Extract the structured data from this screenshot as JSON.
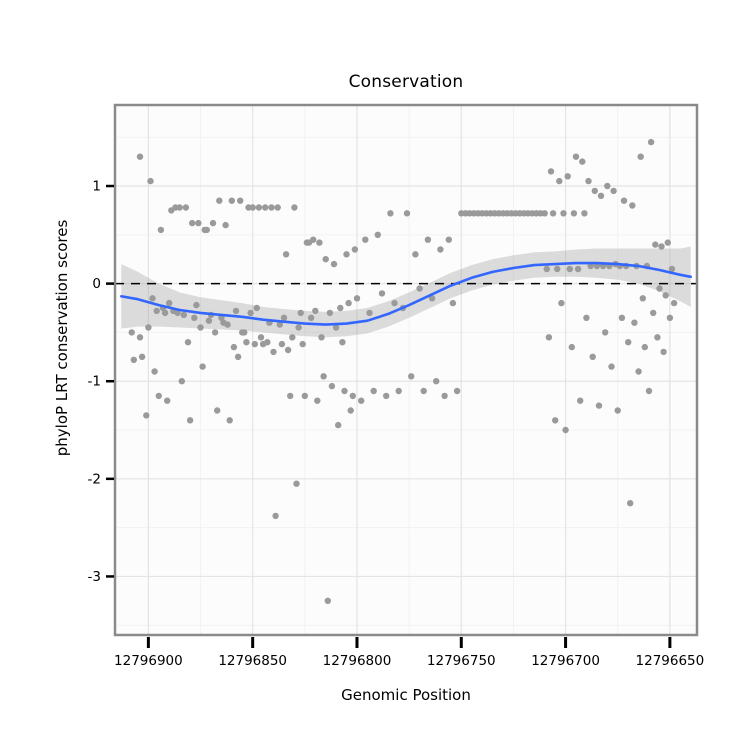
{
  "figure": {
    "title": "Conservation",
    "x_axis_title": "Genomic Position",
    "y_axis_title": "phyloP LRT conservation scores"
  },
  "chart_data": {
    "type": "scatter",
    "title": "Conservation",
    "xlabel": "Genomic Position",
    "ylabel": "phyloP LRT conservation scores",
    "x_axis_reversed": true,
    "xlim": [
      12796916,
      12796637
    ],
    "ylim": [
      -3.6,
      1.83
    ],
    "x_ticks": [
      12796900,
      12796850,
      12796800,
      12796750,
      12796700,
      12796650
    ],
    "x_tick_labels": [
      "12796900",
      "12796850",
      "12796800",
      "12796750",
      "12796700",
      "12796650"
    ],
    "x_minor_ticks": [
      12796875,
      12796825,
      12796775,
      12796725,
      12796675
    ],
    "y_ticks": [
      1,
      0,
      -1,
      -2,
      -3
    ],
    "y_tick_labels": [
      "1",
      "0",
      "-1",
      "-2",
      "-3"
    ],
    "y_minor_ticks": [
      1.5,
      0.5,
      -0.5,
      -1.5,
      -2.5,
      -3.5
    ],
    "grid": "on",
    "legend": "none",
    "reference_line": {
      "y": 0,
      "style": "dashed",
      "color": "#000000"
    },
    "styles": {
      "point_color": "#9A9A9A",
      "point_radius": 3.2,
      "smooth_line_color": "#3366FF",
      "ribbon_color": "#9E9E9E",
      "ribbon_opacity": 0.35,
      "panel_bg": "#FCFCFC",
      "grid_major": "#E4E4E4",
      "grid_minor": "#F2F2F2",
      "panel_border": "#8A8A8A",
      "tick_color": "#000000"
    },
    "smooth": [
      [
        12796913,
        -0.13,
        -0.46,
        0.2
      ],
      [
        12796905,
        -0.16,
        -0.44,
        0.12
      ],
      [
        12796895,
        -0.22,
        -0.44,
        0.0
      ],
      [
        12796885,
        -0.27,
        -0.45,
        -0.09
      ],
      [
        12796875,
        -0.3,
        -0.46,
        -0.14
      ],
      [
        12796865,
        -0.32,
        -0.47,
        -0.17
      ],
      [
        12796855,
        -0.34,
        -0.48,
        -0.2
      ],
      [
        12796845,
        -0.37,
        -0.5,
        -0.24
      ],
      [
        12796835,
        -0.39,
        -0.52,
        -0.26
      ],
      [
        12796825,
        -0.41,
        -0.54,
        -0.28
      ],
      [
        12796815,
        -0.42,
        -0.55,
        -0.29
      ],
      [
        12796805,
        -0.41,
        -0.54,
        -0.28
      ],
      [
        12796795,
        -0.38,
        -0.51,
        -0.25
      ],
      [
        12796785,
        -0.31,
        -0.44,
        -0.18
      ],
      [
        12796775,
        -0.22,
        -0.35,
        -0.09
      ],
      [
        12796765,
        -0.12,
        -0.25,
        0.01
      ],
      [
        12796755,
        -0.02,
        -0.15,
        0.11
      ],
      [
        12796745,
        0.06,
        -0.07,
        0.19
      ],
      [
        12796735,
        0.12,
        -0.01,
        0.25
      ],
      [
        12796725,
        0.16,
        0.03,
        0.29
      ],
      [
        12796715,
        0.19,
        0.06,
        0.32
      ],
      [
        12796705,
        0.2,
        0.07,
        0.33
      ],
      [
        12796695,
        0.21,
        0.07,
        0.35
      ],
      [
        12796685,
        0.21,
        0.06,
        0.36
      ],
      [
        12796675,
        0.2,
        0.04,
        0.36
      ],
      [
        12796665,
        0.18,
        0.0,
        0.36
      ],
      [
        12796655,
        0.14,
        -0.08,
        0.36
      ],
      [
        12796645,
        0.09,
        -0.18,
        0.36
      ],
      [
        12796640,
        0.07,
        -0.24,
        0.38
      ]
    ],
    "points": [
      [
        12796908,
        -0.5
      ],
      [
        12796907,
        -0.78
      ],
      [
        12796904,
        -0.55
      ],
      [
        12796904,
        1.3
      ],
      [
        12796903,
        -0.75
      ],
      [
        12796901,
        -1.35
      ],
      [
        12796900,
        -0.45
      ],
      [
        12796899,
        1.05
      ],
      [
        12796898,
        -0.15
      ],
      [
        12796897,
        -0.9
      ],
      [
        12796896,
        -0.28
      ],
      [
        12796895,
        -1.15
      ],
      [
        12796894,
        0.55
      ],
      [
        12796893,
        -0.25
      ],
      [
        12796892,
        -0.3
      ],
      [
        12796891,
        -1.2
      ],
      [
        12796890,
        -0.2
      ],
      [
        12796889,
        0.75
      ],
      [
        12796888,
        -0.28
      ],
      [
        12796887,
        0.78
      ],
      [
        12796886,
        -0.3
      ],
      [
        12796885,
        0.78
      ],
      [
        12796884,
        -1.0
      ],
      [
        12796883,
        -0.32
      ],
      [
        12796882,
        0.78
      ],
      [
        12796881,
        -0.6
      ],
      [
        12796880,
        -1.4
      ],
      [
        12796879,
        0.62
      ],
      [
        12796878,
        -0.35
      ],
      [
        12796877,
        -0.22
      ],
      [
        12796876,
        0.62
      ],
      [
        12796875,
        -0.45
      ],
      [
        12796874,
        -0.85
      ],
      [
        12796873,
        0.55
      ],
      [
        12796872,
        0.55
      ],
      [
        12796871,
        -0.38
      ],
      [
        12796870,
        -0.32
      ],
      [
        12796869,
        0.62
      ],
      [
        12796868,
        -0.5
      ],
      [
        12796867,
        -1.3
      ],
      [
        12796866,
        0.85
      ],
      [
        12796865,
        -0.35
      ],
      [
        12796864,
        -0.4
      ],
      [
        12796863,
        0.6
      ],
      [
        12796862,
        -0.42
      ],
      [
        12796861,
        -1.4
      ],
      [
        12796860,
        0.85
      ],
      [
        12796859,
        -0.65
      ],
      [
        12796858,
        -0.28
      ],
      [
        12796857,
        -0.75
      ],
      [
        12796856,
        0.85
      ],
      [
        12796855,
        -0.5
      ],
      [
        12796854,
        -0.5
      ],
      [
        12796853,
        -0.6
      ],
      [
        12796852,
        0.78
      ],
      [
        12796851,
        -0.3
      ],
      [
        12796850,
        0.78
      ],
      [
        12796849,
        -0.62
      ],
      [
        12796848,
        -0.25
      ],
      [
        12796847,
        0.78
      ],
      [
        12796846,
        -0.55
      ],
      [
        12796845,
        -0.62
      ],
      [
        12796844,
        0.78
      ],
      [
        12796843,
        -0.6
      ],
      [
        12796842,
        -0.4
      ],
      [
        12796841,
        0.78
      ],
      [
        12796840,
        -0.7
      ],
      [
        12796839,
        -2.38
      ],
      [
        12796838,
        0.78
      ],
      [
        12796837,
        -0.42
      ],
      [
        12796836,
        -0.62
      ],
      [
        12796835,
        -0.35
      ],
      [
        12796834,
        0.3
      ],
      [
        12796833,
        -0.68
      ],
      [
        12796832,
        -1.15
      ],
      [
        12796831,
        -0.55
      ],
      [
        12796830,
        0.78
      ],
      [
        12796829,
        -2.05
      ],
      [
        12796828,
        -0.45
      ],
      [
        12796827,
        -0.3
      ],
      [
        12796826,
        -0.62
      ],
      [
        12796825,
        -1.15
      ],
      [
        12796824,
        0.42
      ],
      [
        12796823,
        0.42
      ],
      [
        12796822,
        -0.35
      ],
      [
        12796821,
        0.45
      ],
      [
        12796820,
        -0.28
      ],
      [
        12796819,
        -1.2
      ],
      [
        12796818,
        0.42
      ],
      [
        12796817,
        -0.55
      ],
      [
        12796816,
        -0.95
      ],
      [
        12796815,
        0.25
      ],
      [
        12796814,
        -3.25
      ],
      [
        12796813,
        -0.3
      ],
      [
        12796812,
        -1.05
      ],
      [
        12796811,
        0.2
      ],
      [
        12796810,
        -0.45
      ],
      [
        12796809,
        -1.45
      ],
      [
        12796808,
        -0.25
      ],
      [
        12796807,
        -0.6
      ],
      [
        12796806,
        -1.1
      ],
      [
        12796805,
        0.3
      ],
      [
        12796804,
        -0.2
      ],
      [
        12796803,
        -1.3
      ],
      [
        12796802,
        -1.15
      ],
      [
        12796801,
        0.35
      ],
      [
        12796800,
        -0.15
      ],
      [
        12796798,
        -1.2
      ],
      [
        12796796,
        0.45
      ],
      [
        12796794,
        -0.3
      ],
      [
        12796792,
        -1.1
      ],
      [
        12796790,
        0.5
      ],
      [
        12796788,
        -0.1
      ],
      [
        12796786,
        -1.15
      ],
      [
        12796784,
        0.72
      ],
      [
        12796782,
        -0.2
      ],
      [
        12796780,
        -1.1
      ],
      [
        12796778,
        -0.25
      ],
      [
        12796776,
        0.72
      ],
      [
        12796774,
        -0.95
      ],
      [
        12796772,
        0.3
      ],
      [
        12796770,
        -0.05
      ],
      [
        12796768,
        -1.1
      ],
      [
        12796766,
        0.45
      ],
      [
        12796764,
        -0.15
      ],
      [
        12796762,
        -1.0
      ],
      [
        12796760,
        0.35
      ],
      [
        12796758,
        -1.15
      ],
      [
        12796756,
        0.45
      ],
      [
        12796754,
        -0.2
      ],
      [
        12796752,
        -1.1
      ],
      [
        12796750,
        0.72
      ],
      [
        12796748,
        0.72
      ],
      [
        12796746,
        0.72
      ],
      [
        12796744,
        0.72
      ],
      [
        12796742,
        0.72
      ],
      [
        12796740,
        0.72
      ],
      [
        12796738,
        0.72
      ],
      [
        12796736,
        0.72
      ],
      [
        12796734,
        0.72
      ],
      [
        12796732,
        0.72
      ],
      [
        12796730,
        0.72
      ],
      [
        12796728,
        0.72
      ],
      [
        12796726,
        0.72
      ],
      [
        12796724,
        0.72
      ],
      [
        12796722,
        0.72
      ],
      [
        12796720,
        0.72
      ],
      [
        12796718,
        0.72
      ],
      [
        12796716,
        0.72
      ],
      [
        12796714,
        0.72
      ],
      [
        12796712,
        0.72
      ],
      [
        12796710,
        0.72
      ],
      [
        12796709,
        0.15
      ],
      [
        12796708,
        -0.55
      ],
      [
        12796707,
        1.15
      ],
      [
        12796706,
        0.72
      ],
      [
        12796705,
        -1.4
      ],
      [
        12796704,
        0.15
      ],
      [
        12796703,
        1.05
      ],
      [
        12796702,
        -0.2
      ],
      [
        12796701,
        0.72
      ],
      [
        12796700,
        -1.5
      ],
      [
        12796699,
        1.1
      ],
      [
        12796698,
        0.15
      ],
      [
        12796697,
        -0.65
      ],
      [
        12796696,
        0.72
      ],
      [
        12796695,
        1.3
      ],
      [
        12796694,
        0.15
      ],
      [
        12796693,
        -1.2
      ],
      [
        12796692,
        1.25
      ],
      [
        12796691,
        0.72
      ],
      [
        12796690,
        -0.35
      ],
      [
        12796689,
        1.05
      ],
      [
        12796688,
        0.18
      ],
      [
        12796687,
        -0.75
      ],
      [
        12796686,
        0.95
      ],
      [
        12796685,
        0.18
      ],
      [
        12796684,
        -1.25
      ],
      [
        12796683,
        0.9
      ],
      [
        12796682,
        0.18
      ],
      [
        12796681,
        -0.5
      ],
      [
        12796680,
        1.0
      ],
      [
        12796679,
        0.18
      ],
      [
        12796678,
        -0.85
      ],
      [
        12796677,
        0.95
      ],
      [
        12796676,
        0.2
      ],
      [
        12796675,
        -1.3
      ],
      [
        12796674,
        0.18
      ],
      [
        12796673,
        -0.35
      ],
      [
        12796672,
        0.85
      ],
      [
        12796671,
        0.18
      ],
      [
        12796670,
        -0.6
      ],
      [
        12796669,
        -2.25
      ],
      [
        12796668,
        0.8
      ],
      [
        12796667,
        -0.4
      ],
      [
        12796666,
        0.18
      ],
      [
        12796665,
        -0.9
      ],
      [
        12796664,
        1.3
      ],
      [
        12796663,
        -0.15
      ],
      [
        12796662,
        -0.65
      ],
      [
        12796661,
        0.18
      ],
      [
        12796660,
        -1.1
      ],
      [
        12796659,
        1.45
      ],
      [
        12796658,
        -0.3
      ],
      [
        12796657,
        0.4
      ],
      [
        12796656,
        -0.55
      ],
      [
        12796655,
        -0.05
      ],
      [
        12796654,
        0.38
      ],
      [
        12796653,
        -0.7
      ],
      [
        12796652,
        -0.12
      ],
      [
        12796651,
        0.42
      ],
      [
        12796650,
        -0.35
      ],
      [
        12796649,
        0.15
      ],
      [
        12796648,
        -0.2
      ]
    ]
  }
}
